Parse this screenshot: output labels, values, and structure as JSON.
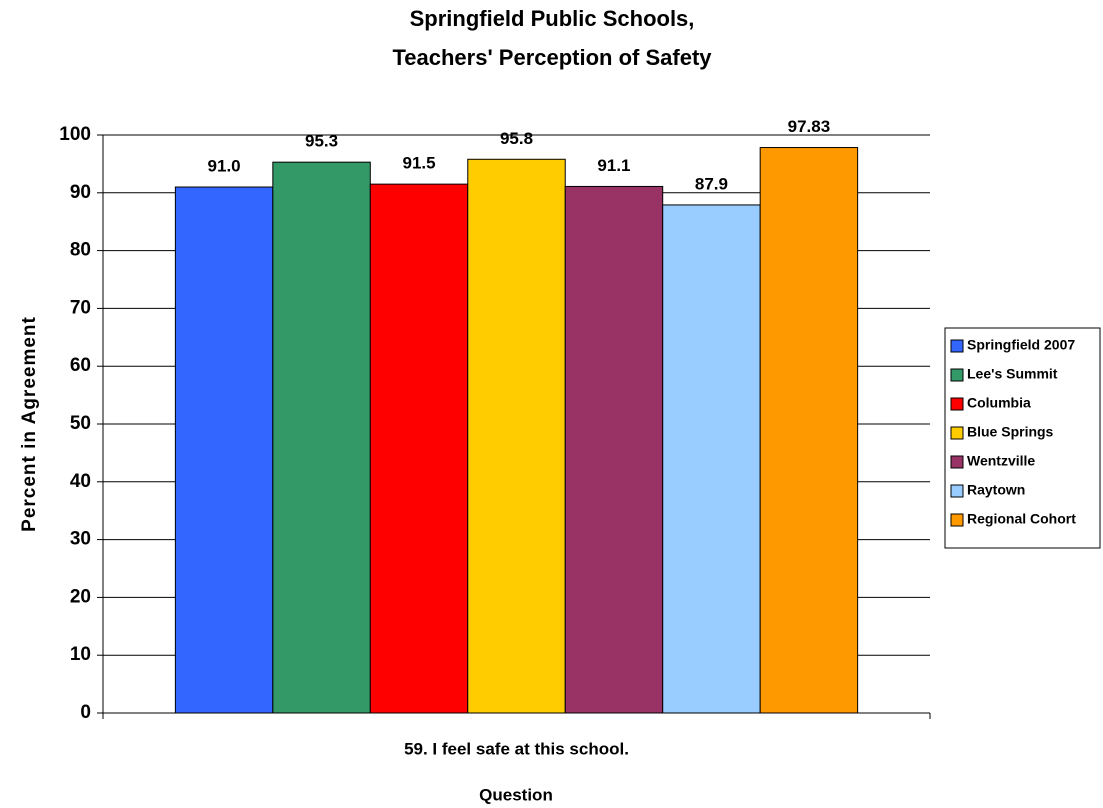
{
  "chart_data": {
    "type": "bar",
    "title": [
      "Springfield Public Schools,",
      "Teachers' Perception of Safety"
    ],
    "x_label": "Question",
    "y_label": "Percent in Agreement",
    "categories": [
      "59. I feel safe at this school."
    ],
    "series": [
      {
        "name": "Springfield 2007",
        "color": "#3366ff",
        "values": [
          91.0
        ],
        "value_labels": [
          "91.0"
        ]
      },
      {
        "name": "Lee's Summit",
        "color": "#339966",
        "values": [
          95.3
        ]
      },
      {
        "name": "Columbia",
        "color": "#ff0000",
        "values": [
          91.5
        ]
      },
      {
        "name": "Blue Springs",
        "color": "#ffcc00",
        "values": [
          95.8
        ]
      },
      {
        "name": "Wentzville",
        "color": "#993366",
        "values": [
          91.1
        ]
      },
      {
        "name": "Raytown",
        "color": "#99ccff",
        "values": [
          87.9
        ]
      },
      {
        "name": "Regional Cohort",
        "color": "#ff9900",
        "values": [
          97.83
        ]
      }
    ],
    "ylim": [
      0,
      100
    ],
    "yticks": [
      0,
      10,
      20,
      30,
      40,
      50,
      60,
      70,
      80,
      90,
      100
    ],
    "grid": true,
    "legend": "right"
  }
}
